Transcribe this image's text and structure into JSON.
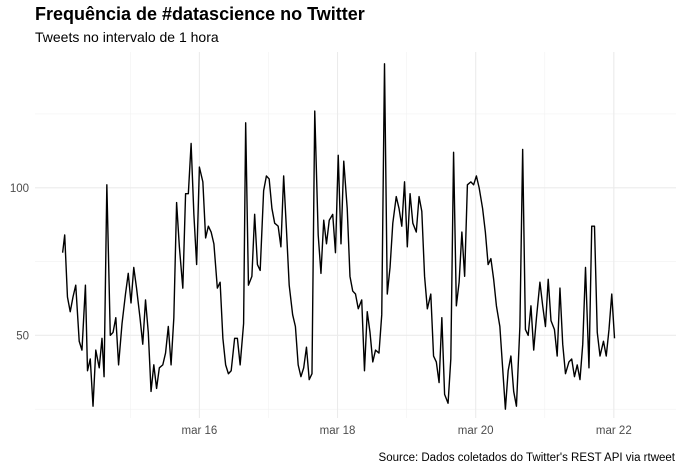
{
  "chart_data": {
    "type": "line",
    "title": "Frequência de #datascience no Twitter",
    "subtitle": "Tweets no intervalo de 1 hora",
    "caption": "Source: Dados coletados do Twitter's REST API via rtweet",
    "xlabel": "",
    "ylabel": "",
    "x_ticks": [
      {
        "t": 1.98,
        "label": "mar 16"
      },
      {
        "t": 3.98,
        "label": "mar 18"
      },
      {
        "t": 5.98,
        "label": "mar 20"
      },
      {
        "t": 7.98,
        "label": "mar 22"
      }
    ],
    "y_ticks": [
      50,
      100
    ],
    "xlim": [
      -0.4,
      8.88
    ],
    "ylim": [
      22,
      146
    ],
    "grid": true,
    "series": [
      {
        "color": "#000000",
        "points": [
          [
            0.0,
            78
          ],
          [
            0.03,
            84
          ],
          [
            0.07,
            63
          ],
          [
            0.11,
            58
          ],
          [
            0.15,
            63
          ],
          [
            0.19,
            67
          ],
          [
            0.24,
            48
          ],
          [
            0.28,
            45
          ],
          [
            0.33,
            67
          ],
          [
            0.36,
            38
          ],
          [
            0.4,
            42
          ],
          [
            0.44,
            26
          ],
          [
            0.48,
            45
          ],
          [
            0.53,
            39
          ],
          [
            0.57,
            49
          ],
          [
            0.6,
            36
          ],
          [
            0.64,
            101
          ],
          [
            0.69,
            50
          ],
          [
            0.73,
            51
          ],
          [
            0.77,
            56
          ],
          [
            0.81,
            40
          ],
          [
            0.86,
            54
          ],
          [
            0.91,
            64
          ],
          [
            0.95,
            71
          ],
          [
            0.99,
            61
          ],
          [
            1.03,
            73
          ],
          [
            1.07,
            66
          ],
          [
            1.12,
            56
          ],
          [
            1.16,
            47
          ],
          [
            1.2,
            62
          ],
          [
            1.24,
            51
          ],
          [
            1.28,
            31
          ],
          [
            1.32,
            40
          ],
          [
            1.36,
            32
          ],
          [
            1.4,
            39
          ],
          [
            1.45,
            40
          ],
          [
            1.49,
            44
          ],
          [
            1.53,
            53
          ],
          [
            1.57,
            40
          ],
          [
            1.61,
            56
          ],
          [
            1.65,
            95
          ],
          [
            1.69,
            80
          ],
          [
            1.74,
            66
          ],
          [
            1.78,
            98
          ],
          [
            1.82,
            98
          ],
          [
            1.86,
            115
          ],
          [
            1.9,
            91
          ],
          [
            1.94,
            74
          ],
          [
            1.98,
            107
          ],
          [
            2.03,
            102
          ],
          [
            2.07,
            83
          ],
          [
            2.11,
            87
          ],
          [
            2.15,
            85
          ],
          [
            2.19,
            81
          ],
          [
            2.24,
            66
          ],
          [
            2.28,
            68
          ],
          [
            2.32,
            49
          ],
          [
            2.36,
            40
          ],
          [
            2.4,
            37
          ],
          [
            2.44,
            38
          ],
          [
            2.49,
            49
          ],
          [
            2.53,
            49
          ],
          [
            2.57,
            40
          ],
          [
            2.62,
            54
          ],
          [
            2.65,
            122
          ],
          [
            2.69,
            67
          ],
          [
            2.74,
            70
          ],
          [
            2.78,
            91
          ],
          [
            2.82,
            74
          ],
          [
            2.86,
            72
          ],
          [
            2.91,
            99
          ],
          [
            2.95,
            104
          ],
          [
            2.99,
            103
          ],
          [
            3.03,
            93
          ],
          [
            3.07,
            88
          ],
          [
            3.12,
            87
          ],
          [
            3.16,
            80
          ],
          [
            3.2,
            104
          ],
          [
            3.24,
            86
          ],
          [
            3.28,
            67
          ],
          [
            3.33,
            57
          ],
          [
            3.37,
            53
          ],
          [
            3.41,
            40
          ],
          [
            3.45,
            36
          ],
          [
            3.49,
            39
          ],
          [
            3.53,
            46
          ],
          [
            3.57,
            35
          ],
          [
            3.61,
            37
          ],
          [
            3.65,
            126
          ],
          [
            3.7,
            84
          ],
          [
            3.74,
            71
          ],
          [
            3.78,
            89
          ],
          [
            3.82,
            81
          ],
          [
            3.86,
            89
          ],
          [
            3.91,
            91
          ],
          [
            3.95,
            78
          ],
          [
            3.99,
            111
          ],
          [
            4.03,
            81
          ],
          [
            4.07,
            109
          ],
          [
            4.12,
            93
          ],
          [
            4.16,
            70
          ],
          [
            4.2,
            65
          ],
          [
            4.24,
            64
          ],
          [
            4.28,
            59
          ],
          [
            4.33,
            62
          ],
          [
            4.37,
            38
          ],
          [
            4.41,
            58
          ],
          [
            4.45,
            51
          ],
          [
            4.49,
            41
          ],
          [
            4.53,
            45
          ],
          [
            4.58,
            44
          ],
          [
            4.62,
            57
          ],
          [
            4.66,
            142
          ],
          [
            4.7,
            64
          ],
          [
            4.74,
            73
          ],
          [
            4.78,
            88
          ],
          [
            4.83,
            97
          ],
          [
            4.87,
            93
          ],
          [
            4.91,
            87
          ],
          [
            4.95,
            102
          ],
          [
            4.99,
            80
          ],
          [
            5.03,
            98
          ],
          [
            5.07,
            88
          ],
          [
            5.12,
            85
          ],
          [
            5.16,
            97
          ],
          [
            5.2,
            92
          ],
          [
            5.24,
            70
          ],
          [
            5.28,
            59
          ],
          [
            5.33,
            64
          ],
          [
            5.37,
            43
          ],
          [
            5.41,
            41
          ],
          [
            5.45,
            34
          ],
          [
            5.49,
            56
          ],
          [
            5.53,
            30
          ],
          [
            5.58,
            27
          ],
          [
            5.62,
            42
          ],
          [
            5.66,
            112
          ],
          [
            5.7,
            60
          ],
          [
            5.74,
            68
          ],
          [
            5.78,
            85
          ],
          [
            5.82,
            70
          ],
          [
            5.86,
            101
          ],
          [
            5.91,
            102
          ],
          [
            5.95,
            101
          ],
          [
            5.99,
            104
          ],
          [
            6.03,
            100
          ],
          [
            6.08,
            93
          ],
          [
            6.12,
            85
          ],
          [
            6.16,
            74
          ],
          [
            6.2,
            76
          ],
          [
            6.24,
            69
          ],
          [
            6.28,
            60
          ],
          [
            6.33,
            53
          ],
          [
            6.37,
            39
          ],
          [
            6.41,
            25
          ],
          [
            6.45,
            38
          ],
          [
            6.49,
            43
          ],
          [
            6.53,
            31
          ],
          [
            6.57,
            26
          ],
          [
            6.62,
            53
          ],
          [
            6.66,
            113
          ],
          [
            6.7,
            52
          ],
          [
            6.74,
            50
          ],
          [
            6.78,
            60
          ],
          [
            6.82,
            45
          ],
          [
            6.86,
            56
          ],
          [
            6.91,
            68
          ],
          [
            6.95,
            60
          ],
          [
            6.99,
            53
          ],
          [
            7.03,
            69
          ],
          [
            7.07,
            55
          ],
          [
            7.12,
            52
          ],
          [
            7.16,
            43
          ],
          [
            7.2,
            66
          ],
          [
            7.24,
            47
          ],
          [
            7.28,
            37
          ],
          [
            7.33,
            41
          ],
          [
            7.37,
            42
          ],
          [
            7.41,
            36
          ],
          [
            7.45,
            40
          ],
          [
            7.49,
            35
          ],
          [
            7.53,
            47
          ],
          [
            7.57,
            73
          ],
          [
            7.62,
            39
          ],
          [
            7.66,
            87
          ],
          [
            7.7,
            87
          ],
          [
            7.74,
            51
          ],
          [
            7.78,
            43
          ],
          [
            7.83,
            48
          ],
          [
            7.87,
            43
          ],
          [
            7.91,
            52
          ],
          [
            7.95,
            64
          ],
          [
            7.99,
            49
          ]
        ]
      }
    ]
  }
}
